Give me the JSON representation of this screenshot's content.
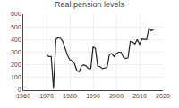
{
  "chart_data": {
    "type": "line",
    "title": "Real pension levels",
    "x": [
      1970,
      1971,
      1972,
      1973,
      1974,
      1975,
      1976,
      1977,
      1978,
      1979,
      1980,
      1981,
      1982,
      1983,
      1984,
      1985,
      1986,
      1987,
      1988,
      1989,
      1990,
      1991,
      1992,
      1993,
      1994,
      1995,
      1996,
      1997,
      1998,
      1999,
      2000,
      2001,
      2002,
      2003,
      2004,
      2005,
      2006,
      2007,
      2008,
      2009,
      2010,
      2011,
      2012,
      2013,
      2014,
      2015,
      2016
    ],
    "values": [
      280,
      265,
      265,
      10,
      400,
      415,
      410,
      385,
      330,
      275,
      240,
      235,
      210,
      155,
      145,
      190,
      200,
      190,
      170,
      170,
      340,
      330,
      190,
      185,
      170,
      175,
      180,
      280,
      290,
      265,
      290,
      300,
      300,
      260,
      250,
      255,
      385,
      380,
      365,
      400,
      360,
      405,
      400,
      400,
      490,
      470,
      478
    ],
    "color": "#222222",
    "xlim": [
      1960,
      2020
    ],
    "xticks": [
      1960,
      1970,
      1980,
      1990,
      2000,
      2010,
      2020
    ],
    "ylim": [
      0,
      600
    ],
    "yticks": [
      0,
      100,
      200,
      300,
      400,
      500,
      600
    ],
    "grid": true
  }
}
